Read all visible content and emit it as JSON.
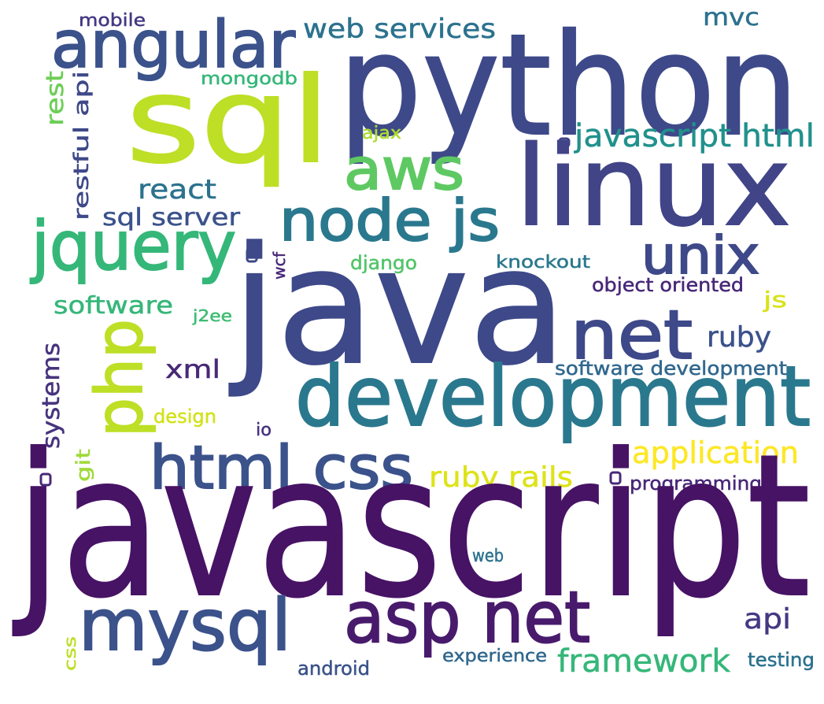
{
  "words": [
    {
      "text": "mobile",
      "color": "#443983"
    },
    {
      "text": "angular",
      "color": "#3b528b"
    },
    {
      "text": "web services",
      "color": "#2c728e"
    },
    {
      "text": "mvc",
      "color": "#2c728e"
    },
    {
      "text": "python",
      "color": "#3e4989"
    },
    {
      "text": "sql",
      "color": "#bddf26"
    },
    {
      "text": "mongodb",
      "color": "#35b779"
    },
    {
      "text": "rest",
      "color": "#6ece58"
    },
    {
      "text": "restful api",
      "color": "#3e4989"
    },
    {
      "text": "ajax",
      "color": "#addc30"
    },
    {
      "text": "javascript html",
      "color": "#21918c"
    },
    {
      "text": "aws",
      "color": "#5ec962"
    },
    {
      "text": "linux",
      "color": "#414487"
    },
    {
      "text": "react",
      "color": "#2c728e"
    },
    {
      "text": "sql server",
      "color": "#3b528b"
    },
    {
      "text": "node js",
      "color": "#2a788e"
    },
    {
      "text": "jquery",
      "color": "#35b779"
    },
    {
      "text": "wcf",
      "color": "#482878"
    },
    {
      "text": "django",
      "color": "#52c569"
    },
    {
      "text": "knockout",
      "color": "#2a788e"
    },
    {
      "text": "unix",
      "color": "#3e4989"
    },
    {
      "text": "object oriented",
      "color": "#482878"
    },
    {
      "text": "software",
      "color": "#35b779"
    },
    {
      "text": "j2ee",
      "color": "#3fbc73"
    },
    {
      "text": "java",
      "color": "#3e4989"
    },
    {
      "text": "js",
      "color": "#d8e219"
    },
    {
      "text": "net",
      "color": "#3e4989"
    },
    {
      "text": "ruby",
      "color": "#3b528b"
    },
    {
      "text": "php",
      "color": "#bddf26"
    },
    {
      "text": "xml",
      "color": "#482878"
    },
    {
      "text": "software development",
      "color": "#31688e"
    },
    {
      "text": "systems",
      "color": "#46337e"
    },
    {
      "text": "development",
      "color": "#2a788e"
    },
    {
      "text": "design",
      "color": "#d2e21b"
    },
    {
      "text": "io",
      "color": "#46337e"
    },
    {
      "text": "git",
      "color": "#a0da39"
    },
    {
      "text": "application",
      "color": "#fde725"
    },
    {
      "text": "html css",
      "color": "#3b528b"
    },
    {
      "text": "ruby rails",
      "color": "#dde318"
    },
    {
      "text": "programming",
      "color": "#482878"
    },
    {
      "text": "javascript",
      "color": "#471365"
    },
    {
      "text": "web",
      "color": "#2c728e"
    },
    {
      "text": "mysql",
      "color": "#3b528b"
    },
    {
      "text": "asp net",
      "color": "#481a6c"
    },
    {
      "text": "api",
      "color": "#443983"
    },
    {
      "text": "css",
      "color": "#bddf26"
    },
    {
      "text": "android",
      "color": "#3b528b"
    },
    {
      "text": "experience",
      "color": "#31688e"
    },
    {
      "text": "framework",
      "color": "#35b779"
    },
    {
      "text": "testing",
      "color": "#2c728e"
    }
  ]
}
